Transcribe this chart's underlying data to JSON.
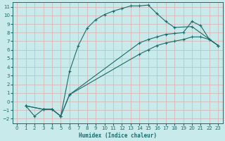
{
  "background_color": "#c8eaea",
  "grid_color": "#d4b8b8",
  "line_color": "#1a6b6b",
  "marker": "+",
  "xlabel": "Humidex (Indice chaleur)",
  "xlim": [
    -0.5,
    23.5
  ],
  "ylim": [
    -2.5,
    11.5
  ],
  "xticks": [
    0,
    1,
    2,
    3,
    4,
    5,
    6,
    7,
    8,
    9,
    10,
    11,
    12,
    13,
    14,
    15,
    16,
    17,
    18,
    19,
    20,
    21,
    22,
    23
  ],
  "yticks": [
    -2,
    -1,
    0,
    1,
    2,
    3,
    4,
    5,
    6,
    7,
    8,
    9,
    10,
    11
  ],
  "curve1_x": [
    1,
    2,
    3,
    4,
    5,
    6,
    7,
    8,
    9,
    10,
    11,
    12,
    13,
    14,
    15,
    16,
    17,
    18,
    20,
    23
  ],
  "curve1_y": [
    -0.5,
    -1.7,
    -0.9,
    -0.9,
    -1.7,
    3.5,
    6.5,
    8.5,
    9.5,
    10.1,
    10.5,
    10.8,
    11.1,
    11.1,
    11.2,
    10.2,
    9.3,
    8.6,
    8.7,
    6.5
  ],
  "curve2_x": [
    1,
    3,
    4,
    5,
    6,
    14,
    15,
    16,
    17,
    18,
    19,
    20,
    21,
    22,
    23
  ],
  "curve2_y": [
    -0.5,
    -0.9,
    -0.9,
    -1.7,
    0.8,
    6.8,
    7.2,
    7.5,
    7.8,
    7.9,
    8.0,
    9.3,
    8.8,
    7.2,
    6.5
  ],
  "curve3_x": [
    1,
    3,
    4,
    5,
    6,
    14,
    15,
    16,
    17,
    18,
    19,
    20,
    21,
    22,
    23
  ],
  "curve3_y": [
    -0.5,
    -0.9,
    -0.9,
    -1.7,
    0.8,
    5.5,
    6.0,
    6.5,
    6.8,
    7.0,
    7.2,
    7.5,
    7.5,
    7.2,
    6.5
  ]
}
